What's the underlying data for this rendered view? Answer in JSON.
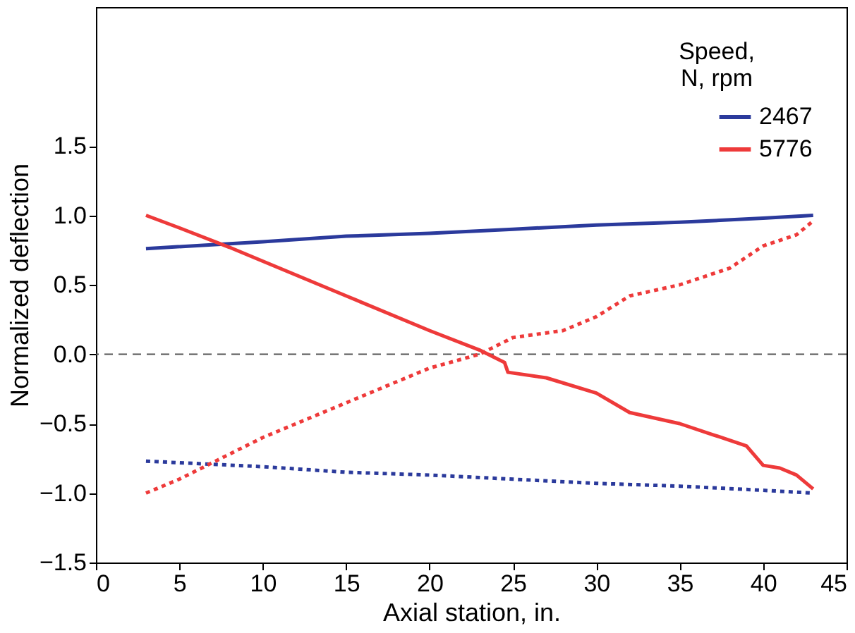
{
  "chart_data": {
    "type": "line",
    "xlabel": "Axial station, in.",
    "ylabel": "Normalized deflection",
    "legend_title": "Speed,\nN, rpm",
    "legend": "top right",
    "grid": false,
    "marker": "none",
    "xlim": [
      0,
      45
    ],
    "xticks": [
      0,
      5,
      10,
      15,
      20,
      25,
      30,
      35,
      40,
      45
    ],
    "ylim": [
      -1.5,
      2.5
    ],
    "yticks": [
      -1.5,
      {
        "value": -1,
        "label": "−1.0"
      },
      -0.5,
      {
        "value": 0,
        "label": "0.0"
      },
      0.5,
      {
        "value": 1,
        "label": "1.0"
      },
      1.5
    ],
    "ref_lines": [
      {
        "axis": "y",
        "value": 0,
        "color": "#555555",
        "line_style": "dashed"
      }
    ],
    "series": [
      {
        "name": "2467",
        "color": "#2b3a9c",
        "line_style": "solid",
        "x": [
          3,
          10,
          15,
          20,
          25,
          30,
          35,
          40,
          43
        ],
        "values": [
          0.76,
          0.81,
          0.85,
          0.87,
          0.9,
          0.93,
          0.95,
          0.98,
          1.0
        ]
      },
      {
        "name": "5776",
        "color": "#ee3a3a",
        "line_style": "solid",
        "x": [
          3,
          5,
          8,
          10,
          15,
          20,
          23,
          24.5,
          24.7,
          27,
          30,
          32,
          35,
          37,
          39,
          40,
          41,
          42,
          43
        ],
        "values": [
          1.0,
          0.91,
          0.77,
          0.67,
          0.42,
          0.17,
          0.03,
          -0.06,
          -0.13,
          -0.17,
          -0.28,
          -0.42,
          -0.5,
          -0.58,
          -0.66,
          -0.8,
          -0.82,
          -0.87,
          -0.97
        ]
      },
      {
        "color": "#2b3a9c",
        "line_style": "dotted",
        "x": [
          3,
          10,
          15,
          20,
          25,
          30,
          35,
          40,
          43
        ],
        "values": [
          -0.77,
          -0.81,
          -0.85,
          -0.87,
          -0.9,
          -0.93,
          -0.95,
          -0.98,
          -1.0
        ]
      },
      {
        "color": "#ee3a3a",
        "line_style": "dotted",
        "x": [
          3,
          5,
          8,
          10,
          15,
          20,
          23,
          25,
          28,
          30,
          32,
          35,
          38,
          40,
          42,
          43
        ],
        "values": [
          -1.0,
          -0.9,
          -0.72,
          -0.6,
          -0.35,
          -0.1,
          0.0,
          0.12,
          0.17,
          0.27,
          0.42,
          0.5,
          0.62,
          0.78,
          0.86,
          0.96
        ]
      }
    ]
  }
}
